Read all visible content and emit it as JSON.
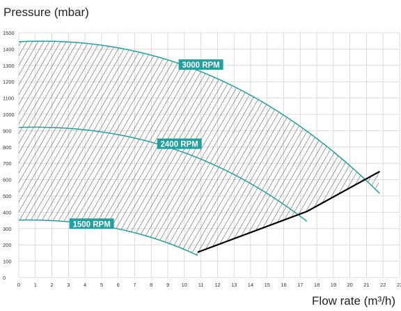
{
  "chart_data": {
    "type": "line",
    "title": "",
    "ylabel": "Pressure (mbar)",
    "xlabel": "Flow rate (m³/h)",
    "xlim": [
      0,
      23
    ],
    "ylim": [
      0,
      1500
    ],
    "x_ticks": [
      "0",
      "1",
      "2",
      "3",
      "4",
      "5",
      "6",
      "7",
      "8",
      "9",
      "10",
      "11",
      "12",
      "13",
      "14",
      "15",
      "16",
      "17",
      "18",
      "19",
      "20",
      "21",
      "22",
      "23"
    ],
    "y_ticks": [
      "0",
      "100",
      "200",
      "300",
      "400",
      "500",
      "600",
      "700",
      "800",
      "900",
      "1000",
      "1100",
      "1200",
      "1300",
      "1400",
      "1500"
    ],
    "grid": true,
    "series": [
      {
        "name": "3000 RPM",
        "label_at": [
          11.0,
          1305
        ],
        "x": [
          0,
          1,
          2,
          3,
          4,
          5,
          6,
          7,
          8,
          9,
          10,
          11,
          12,
          13,
          14,
          15,
          16,
          17,
          18,
          19,
          20,
          21,
          21.8
        ],
        "y": [
          1445,
          1452,
          1455,
          1450,
          1438,
          1420,
          1397,
          1370,
          1338,
          1302,
          1262,
          1217,
          1167,
          1110,
          1048,
          980,
          905,
          824,
          737,
          644,
          546,
          443,
          650
        ]
      },
      {
        "name": "2400 RPM",
        "label_at": [
          9.7,
          820
        ],
        "x": [
          0,
          1,
          2,
          3,
          4,
          5,
          6,
          7,
          8,
          9,
          10,
          11,
          12,
          13,
          14,
          15,
          16,
          17,
          17.4
        ],
        "y": [
          920,
          924,
          925,
          920,
          912,
          899,
          882,
          860,
          834,
          803,
          766,
          724,
          676,
          622,
          562,
          495,
          421,
          341,
          405
        ]
      },
      {
        "name": "1500 RPM",
        "label_at": [
          4.4,
          330
        ],
        "x": [
          0,
          1,
          2,
          3,
          4,
          5,
          6,
          7,
          8,
          9,
          10,
          10.8
        ],
        "y": [
          352,
          354,
          352,
          345,
          333,
          316,
          294,
          267,
          235,
          198,
          157,
          155
        ]
      }
    ],
    "min_curve": {
      "x": [
        10.8,
        17.4,
        21.8
      ],
      "y": [
        155,
        405,
        650
      ]
    }
  },
  "colors": {
    "curve": "#21a0a0",
    "label_bg": "#21a0a0",
    "label_text": "#ffffff",
    "min_curve": "#000000",
    "hatch": "#333333",
    "grid": "#d3d3d3"
  }
}
